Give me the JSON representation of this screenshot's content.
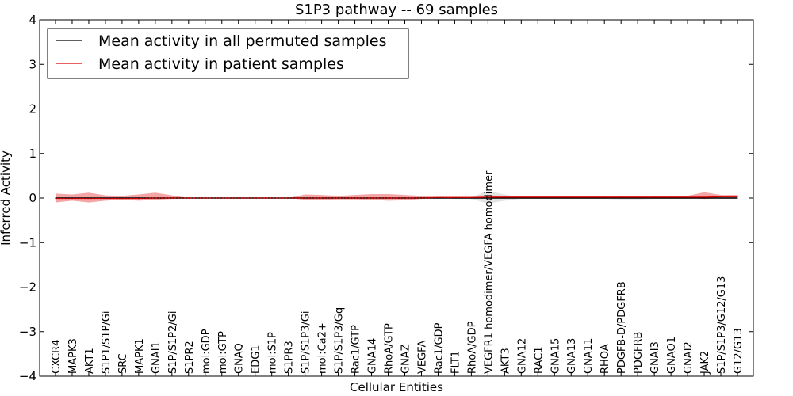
{
  "chart_data": {
    "type": "area",
    "title": "S1P3 pathway -- 69 samples",
    "xlabel": "Cellular Entities",
    "ylabel": "Inferred Activity",
    "ylim": [
      -4,
      4
    ],
    "yticks": [
      -4,
      -3,
      -2,
      -1,
      0,
      1,
      2,
      3,
      4
    ],
    "ytick_labels": [
      "−4",
      "−3",
      "−2",
      "−1",
      "0",
      "1",
      "2",
      "3",
      "4"
    ],
    "legend_position": "top-left",
    "categories": [
      "CXCR4",
      "MAPK3",
      "AKT1",
      "S1P1/S1P/Gi",
      "SRC",
      "MAPK1",
      "GNAI1",
      "S1P/S1P2/Gi",
      "S1PR2",
      "mol:GDP",
      "mol:GTP",
      "GNAQ",
      "EDG1",
      "mol:S1P",
      "S1PR3",
      "S1P/S1P3/Gi",
      "mol:Ca2+",
      "S1P/S1P3/Gq",
      "Rac1/GTP",
      "GNA14",
      "RhoA/GTP",
      "GNAZ",
      "VEGFA",
      "Rac1/GDP",
      "FLT1",
      "RhoA/GDP",
      "VEGFR1 homodimer/VEGFA homodimer",
      "AKT3",
      "GNA12",
      "RAC1",
      "GNA15",
      "GNA13",
      "GNA11",
      "RHOA",
      "PDGFB-D/PDGFRB",
      "PDGFRB",
      "GNAI3",
      "GNAO1",
      "GNAI2",
      "JAK2",
      "S1P/S1P3/G12/G13",
      "G12/G13"
    ],
    "series": [
      {
        "name": "Mean activity in all permuted samples",
        "color": "#000000",
        "values": [
          0,
          0,
          0,
          0,
          0,
          0,
          0,
          0,
          0,
          0,
          0,
          0,
          0,
          0,
          0,
          0,
          0,
          0,
          0,
          0,
          0,
          0,
          0,
          0,
          0,
          0,
          0,
          0,
          0,
          0,
          0,
          0,
          0,
          0,
          0,
          0,
          0,
          0,
          0,
          0,
          0,
          0
        ],
        "band_low": [
          0,
          0,
          0,
          0,
          0,
          0,
          0,
          0,
          0,
          0,
          0,
          0,
          0,
          0,
          0,
          0,
          0,
          0,
          0,
          0,
          0,
          0,
          0,
          0,
          -0.02,
          -0.02,
          -0.12,
          -0.06,
          -0.02,
          -0.02,
          -0.02,
          -0.02,
          -0.02,
          -0.02,
          -0.03,
          -0.03,
          -0.02,
          -0.02,
          -0.02,
          -0.02,
          -0.02,
          -0.02
        ],
        "band_high": [
          0,
          0,
          0,
          0,
          0,
          0,
          0,
          0,
          0,
          0,
          0,
          0,
          0,
          0,
          0,
          0,
          0,
          0,
          0,
          0,
          0,
          0,
          0,
          0,
          0.02,
          0.02,
          0.16,
          0.08,
          0.02,
          0.02,
          0.02,
          0.02,
          0.02,
          0.02,
          0.02,
          0.02,
          0.02,
          0.02,
          0.02,
          0.02,
          0.02,
          0.02
        ],
        "band_color": "#cccccc"
      },
      {
        "name": "Mean activity in patient samples",
        "color": "#dd0000",
        "values": [
          -0.01,
          -0.01,
          -0.01,
          -0.01,
          -0.01,
          -0.01,
          0,
          0,
          0,
          0,
          0,
          0,
          0,
          0,
          0,
          0,
          0,
          0,
          0,
          0,
          0,
          0,
          0,
          0.01,
          0.01,
          0.01,
          0.02,
          0.02,
          0.02,
          0.02,
          0.02,
          0.02,
          0.02,
          0.02,
          0.02,
          0.02,
          0.02,
          0.02,
          0.02,
          0.02,
          0.03,
          0.03
        ],
        "band_low": [
          -0.1,
          -0.06,
          -0.1,
          -0.06,
          -0.04,
          -0.06,
          -0.04,
          -0.02,
          0,
          0,
          0,
          0,
          0,
          0,
          0,
          -0.04,
          -0.04,
          -0.03,
          -0.03,
          -0.04,
          -0.06,
          -0.05,
          -0.02,
          -0.01,
          0,
          0,
          0,
          0,
          0.01,
          0.01,
          0.01,
          0.01,
          0.01,
          0.01,
          0.01,
          0.01,
          0.01,
          0.01,
          0.01,
          -0.02,
          0,
          0
        ],
        "band_high": [
          0.1,
          0.08,
          0.12,
          0.06,
          0.05,
          0.08,
          0.12,
          0.06,
          0,
          0,
          0,
          0,
          0,
          0,
          0,
          0.08,
          0.07,
          0.05,
          0.07,
          0.09,
          0.09,
          0.07,
          0.05,
          0.05,
          0.05,
          0.05,
          0.06,
          0.05,
          0.05,
          0.05,
          0.05,
          0.05,
          0.05,
          0.05,
          0.05,
          0.05,
          0.05,
          0.05,
          0.05,
          0.13,
          0.07,
          0.07
        ],
        "band_color": "#f08080"
      }
    ]
  }
}
